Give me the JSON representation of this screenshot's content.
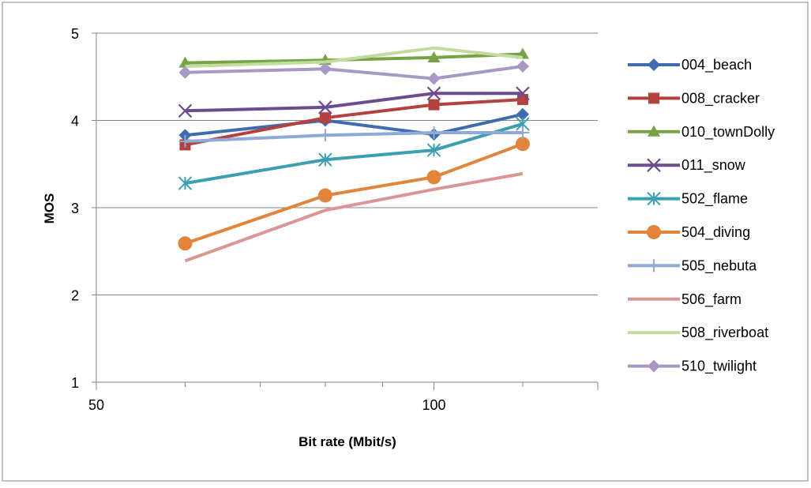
{
  "chart_data": {
    "type": "line",
    "xlabel": "Bit rate (Mbit/s)",
    "ylabel": "MOS",
    "x_scale": "log",
    "xlim": [
      50,
      140
    ],
    "ylim": [
      1,
      5
    ],
    "x_ticks": [
      50,
      100
    ],
    "y_ticks": [
      1,
      2,
      3,
      4,
      5
    ],
    "grid": "horizontal",
    "legend_position": "right",
    "x": [
      60,
      80,
      100,
      120
    ],
    "series": [
      {
        "name": "004_beach",
        "color": "#3F6CAF",
        "marker": "diamond",
        "values": [
          3.83,
          4.0,
          3.84,
          4.07
        ]
      },
      {
        "name": "008_cracker",
        "color": "#B5413F",
        "marker": "square",
        "values": [
          3.72,
          4.03,
          4.18,
          4.24
        ]
      },
      {
        "name": "010_townDolly",
        "color": "#77A347",
        "marker": "triangle",
        "values": [
          4.66,
          4.69,
          4.72,
          4.76
        ]
      },
      {
        "name": "011_snow",
        "color": "#6A4C8F",
        "marker": "x",
        "values": [
          4.11,
          4.15,
          4.31,
          4.31
        ]
      },
      {
        "name": "502_flame",
        "color": "#3C9FB0",
        "marker": "star",
        "values": [
          3.28,
          3.55,
          3.66,
          3.96
        ]
      },
      {
        "name": "504_diving",
        "color": "#E1843C",
        "marker": "circle",
        "values": [
          2.59,
          3.14,
          3.35,
          3.73
        ]
      },
      {
        "name": "505_nebuta",
        "color": "#8FAAD8",
        "marker": "plus",
        "values": [
          3.76,
          3.83,
          3.86,
          3.86
        ]
      },
      {
        "name": "506_farm",
        "color": "#DB9593",
        "marker": "none",
        "values": [
          2.39,
          2.97,
          3.21,
          3.39
        ]
      },
      {
        "name": "508_riverboat",
        "color": "#C3DB9E",
        "marker": "none",
        "values": [
          4.62,
          4.67,
          4.83,
          4.72
        ]
      },
      {
        "name": "510_twilight",
        "color": "#A898C5",
        "marker": "diamond",
        "values": [
          4.55,
          4.59,
          4.48,
          4.62
        ]
      }
    ]
  }
}
